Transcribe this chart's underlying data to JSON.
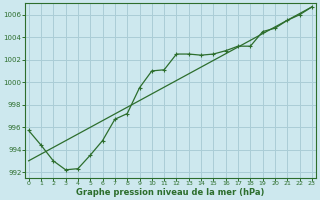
{
  "xlabel": "Graphe pression niveau de la mer (hPa)",
  "background_color": "#cde8ee",
  "grid_color": "#aacdd6",
  "line_color": "#2d6e2d",
  "ylim": [
    991.5,
    1007.0
  ],
  "xlim": [
    -0.3,
    23.3
  ],
  "yticks": [
    992,
    994,
    996,
    998,
    1000,
    1002,
    1004,
    1006
  ],
  "xticks": [
    0,
    1,
    2,
    3,
    4,
    5,
    6,
    7,
    8,
    9,
    10,
    11,
    12,
    13,
    14,
    15,
    16,
    17,
    18,
    19,
    20,
    21,
    22,
    23
  ],
  "series1_x": [
    0,
    1,
    2,
    3,
    4,
    5,
    6,
    7,
    8,
    9,
    10,
    11,
    12,
    13,
    14,
    15,
    16,
    17,
    18,
    19,
    20,
    21,
    22,
    23
  ],
  "series1_y": [
    995.7,
    994.4,
    993.0,
    992.2,
    992.3,
    993.5,
    994.8,
    996.7,
    997.2,
    999.5,
    1001.0,
    1001.1,
    1002.5,
    1002.5,
    1002.4,
    1002.5,
    1002.8,
    1003.2,
    1003.2,
    1004.5,
    1004.8,
    1005.5,
    1006.0,
    1006.7
  ],
  "series2_x": [
    0,
    23
  ],
  "series2_y": [
    993.0,
    1006.7
  ]
}
